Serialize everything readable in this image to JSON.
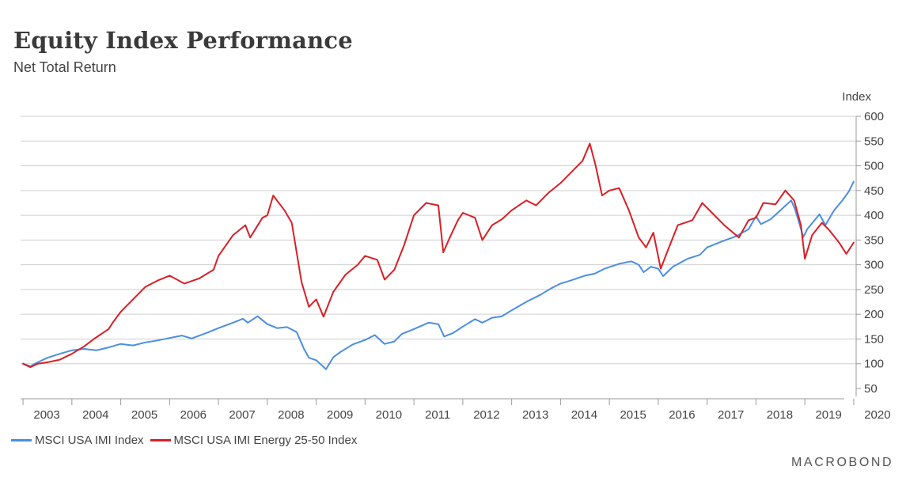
{
  "header": {
    "title": "Equity Index Performance",
    "subtitle": "Net Total Return"
  },
  "brand": "MACROBOND",
  "chart_data": {
    "type": "line",
    "title": "Equity Index Performance",
    "subtitle": "Net Total Return",
    "ylabel": "Index",
    "xlabel": "",
    "ylim": [
      50,
      600
    ],
    "xlim": [
      2002.95,
      2020.05
    ],
    "y_ticks": [
      50,
      100,
      150,
      200,
      250,
      300,
      350,
      400,
      450,
      500,
      550,
      600
    ],
    "x_ticks": [
      "2003",
      "2004",
      "2005",
      "2006",
      "2007",
      "2008",
      "2009",
      "2010",
      "2011",
      "2012",
      "2013",
      "2014",
      "2015",
      "2016",
      "2017",
      "2018",
      "2019",
      "2020"
    ],
    "grid": "horizontal",
    "legend_position": "bottom-left",
    "series": [
      {
        "name": "MSCI USA IMI Index",
        "color": "#4a8ee3",
        "points": [
          [
            2003.0,
            100
          ],
          [
            2003.15,
            95
          ],
          [
            2003.3,
            103
          ],
          [
            2003.5,
            112
          ],
          [
            2003.75,
            120
          ],
          [
            2004.0,
            127
          ],
          [
            2004.25,
            130
          ],
          [
            2004.5,
            127
          ],
          [
            2004.75,
            133
          ],
          [
            2005.0,
            140
          ],
          [
            2005.25,
            137
          ],
          [
            2005.5,
            143
          ],
          [
            2005.75,
            147
          ],
          [
            2006.0,
            152
          ],
          [
            2006.25,
            157
          ],
          [
            2006.45,
            151
          ],
          [
            2006.75,
            162
          ],
          [
            2007.0,
            172
          ],
          [
            2007.3,
            183
          ],
          [
            2007.5,
            191
          ],
          [
            2007.6,
            183
          ],
          [
            2007.8,
            196
          ],
          [
            2008.0,
            180
          ],
          [
            2008.2,
            172
          ],
          [
            2008.4,
            174
          ],
          [
            2008.6,
            164
          ],
          [
            2008.75,
            130
          ],
          [
            2008.85,
            112
          ],
          [
            2009.0,
            107
          ],
          [
            2009.2,
            89
          ],
          [
            2009.35,
            113
          ],
          [
            2009.5,
            124
          ],
          [
            2009.75,
            139
          ],
          [
            2010.0,
            148
          ],
          [
            2010.2,
            158
          ],
          [
            2010.4,
            140
          ],
          [
            2010.6,
            145
          ],
          [
            2010.75,
            160
          ],
          [
            2011.0,
            170
          ],
          [
            2011.3,
            183
          ],
          [
            2011.5,
            180
          ],
          [
            2011.62,
            155
          ],
          [
            2011.8,
            162
          ],
          [
            2012.0,
            175
          ],
          [
            2012.25,
            190
          ],
          [
            2012.4,
            183
          ],
          [
            2012.6,
            193
          ],
          [
            2012.8,
            196
          ],
          [
            2013.0,
            208
          ],
          [
            2013.3,
            225
          ],
          [
            2013.6,
            240
          ],
          [
            2013.8,
            252
          ],
          [
            2014.0,
            262
          ],
          [
            2014.2,
            268
          ],
          [
            2014.5,
            278
          ],
          [
            2014.7,
            282
          ],
          [
            2014.9,
            292
          ],
          [
            2015.2,
            302
          ],
          [
            2015.45,
            307
          ],
          [
            2015.6,
            300
          ],
          [
            2015.7,
            285
          ],
          [
            2015.85,
            296
          ],
          [
            2016.0,
            292
          ],
          [
            2016.1,
            277
          ],
          [
            2016.3,
            296
          ],
          [
            2016.6,
            312
          ],
          [
            2016.85,
            320
          ],
          [
            2017.0,
            335
          ],
          [
            2017.3,
            347
          ],
          [
            2017.6,
            358
          ],
          [
            2017.85,
            372
          ],
          [
            2018.0,
            398
          ],
          [
            2018.1,
            382
          ],
          [
            2018.3,
            392
          ],
          [
            2018.5,
            410
          ],
          [
            2018.72,
            430
          ],
          [
            2018.8,
            412
          ],
          [
            2018.97,
            356
          ],
          [
            2019.05,
            372
          ],
          [
            2019.3,
            402
          ],
          [
            2019.42,
            380
          ],
          [
            2019.6,
            410
          ],
          [
            2019.75,
            428
          ],
          [
            2019.9,
            448
          ],
          [
            2020.0,
            468
          ]
        ]
      },
      {
        "name": "MSCI USA IMI Energy 25-50 Index",
        "color": "#d91f26",
        "points": [
          [
            2003.0,
            100
          ],
          [
            2003.15,
            93
          ],
          [
            2003.3,
            100
          ],
          [
            2003.5,
            103
          ],
          [
            2003.75,
            108
          ],
          [
            2004.0,
            120
          ],
          [
            2004.25,
            135
          ],
          [
            2004.45,
            150
          ],
          [
            2004.75,
            170
          ],
          [
            2004.85,
            185
          ],
          [
            2005.0,
            205
          ],
          [
            2005.3,
            235
          ],
          [
            2005.5,
            255
          ],
          [
            2005.75,
            268
          ],
          [
            2006.0,
            278
          ],
          [
            2006.3,
            262
          ],
          [
            2006.6,
            272
          ],
          [
            2006.9,
            290
          ],
          [
            2007.0,
            318
          ],
          [
            2007.3,
            360
          ],
          [
            2007.55,
            380
          ],
          [
            2007.65,
            355
          ],
          [
            2007.9,
            395
          ],
          [
            2008.0,
            400
          ],
          [
            2008.12,
            440
          ],
          [
            2008.35,
            410
          ],
          [
            2008.5,
            385
          ],
          [
            2008.7,
            265
          ],
          [
            2008.85,
            215
          ],
          [
            2009.0,
            230
          ],
          [
            2009.15,
            195
          ],
          [
            2009.35,
            245
          ],
          [
            2009.6,
            280
          ],
          [
            2009.85,
            300
          ],
          [
            2010.0,
            318
          ],
          [
            2010.25,
            310
          ],
          [
            2010.4,
            270
          ],
          [
            2010.6,
            290
          ],
          [
            2010.8,
            340
          ],
          [
            2011.0,
            400
          ],
          [
            2011.25,
            425
          ],
          [
            2011.5,
            420
          ],
          [
            2011.6,
            325
          ],
          [
            2011.72,
            352
          ],
          [
            2011.9,
            390
          ],
          [
            2012.0,
            405
          ],
          [
            2012.25,
            395
          ],
          [
            2012.4,
            350
          ],
          [
            2012.6,
            380
          ],
          [
            2012.8,
            392
          ],
          [
            2013.0,
            410
          ],
          [
            2013.3,
            430
          ],
          [
            2013.5,
            420
          ],
          [
            2013.75,
            445
          ],
          [
            2014.0,
            465
          ],
          [
            2014.25,
            490
          ],
          [
            2014.45,
            510
          ],
          [
            2014.6,
            545
          ],
          [
            2014.72,
            500
          ],
          [
            2014.85,
            440
          ],
          [
            2015.0,
            450
          ],
          [
            2015.2,
            455
          ],
          [
            2015.4,
            410
          ],
          [
            2015.6,
            355
          ],
          [
            2015.75,
            335
          ],
          [
            2015.9,
            365
          ],
          [
            2016.05,
            292
          ],
          [
            2016.2,
            330
          ],
          [
            2016.4,
            380
          ],
          [
            2016.7,
            390
          ],
          [
            2016.9,
            425
          ],
          [
            2017.1,
            405
          ],
          [
            2017.35,
            380
          ],
          [
            2017.65,
            355
          ],
          [
            2017.85,
            390
          ],
          [
            2018.0,
            395
          ],
          [
            2018.15,
            425
          ],
          [
            2018.4,
            422
          ],
          [
            2018.6,
            450
          ],
          [
            2018.78,
            430
          ],
          [
            2018.92,
            380
          ],
          [
            2019.0,
            312
          ],
          [
            2019.15,
            360
          ],
          [
            2019.35,
            385
          ],
          [
            2019.5,
            370
          ],
          [
            2019.7,
            345
          ],
          [
            2019.85,
            322
          ],
          [
            2020.0,
            345
          ]
        ]
      }
    ]
  }
}
